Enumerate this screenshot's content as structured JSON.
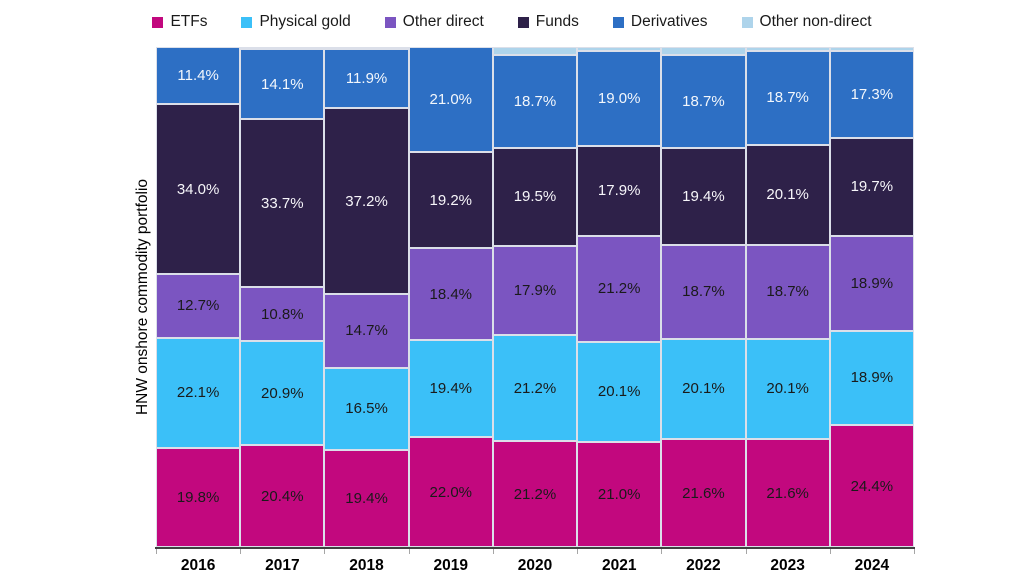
{
  "chart_data": {
    "type": "bar",
    "stacked": true,
    "percent_of_total": true,
    "title": "",
    "ylabel": "HNW onshore commodity portfolio",
    "xlabel": "",
    "value_suffix": "%",
    "ylim": [
      0,
      100
    ],
    "grid": false,
    "legend_position": "top",
    "categories": [
      "2016",
      "2017",
      "2018",
      "2019",
      "2020",
      "2021",
      "2022",
      "2023",
      "2024"
    ],
    "series": [
      {
        "name": "ETFs",
        "color": "#c2087e",
        "label_color": "#1a1a1a",
        "labels_shown": true,
        "values": [
          19.8,
          20.4,
          19.4,
          22.0,
          21.2,
          21.0,
          21.6,
          21.6,
          24.4
        ]
      },
      {
        "name": "Physical gold",
        "color": "#3bc0f8",
        "label_color": "#1a1a1a",
        "labels_shown": true,
        "values": [
          22.1,
          20.9,
          16.5,
          19.4,
          21.2,
          20.1,
          20.1,
          20.1,
          18.9
        ]
      },
      {
        "name": "Other direct",
        "color": "#7b55c1",
        "label_color": "#1a1a1a",
        "labels_shown": true,
        "values": [
          12.7,
          10.8,
          14.7,
          18.4,
          17.9,
          21.2,
          18.7,
          18.7,
          18.9
        ]
      },
      {
        "name": "Funds",
        "color": "#2e2149",
        "label_color": "#f7f6fa",
        "labels_shown": true,
        "values": [
          34.0,
          33.7,
          37.2,
          19.2,
          19.5,
          17.9,
          19.4,
          20.1,
          19.7
        ]
      },
      {
        "name": "Derivatives",
        "color": "#2d6fc4",
        "label_color": "#f3f7fc",
        "labels_shown": true,
        "values": [
          11.4,
          14.1,
          11.9,
          21.0,
          18.7,
          19.0,
          18.7,
          18.7,
          17.3
        ]
      },
      {
        "name": "Other non-direct",
        "color": "#aed4eb",
        "label_color": "#1a1a1a",
        "labels_shown": false,
        "values": [
          0.0,
          0.1,
          0.3,
          0.0,
          1.5,
          0.8,
          1.5,
          0.8,
          0.8
        ]
      }
    ],
    "axis_styles": {
      "axis_line_color": "#404040",
      "tick_color": "#a6a6a6",
      "segment_border_color": "#dbdfe9"
    }
  }
}
